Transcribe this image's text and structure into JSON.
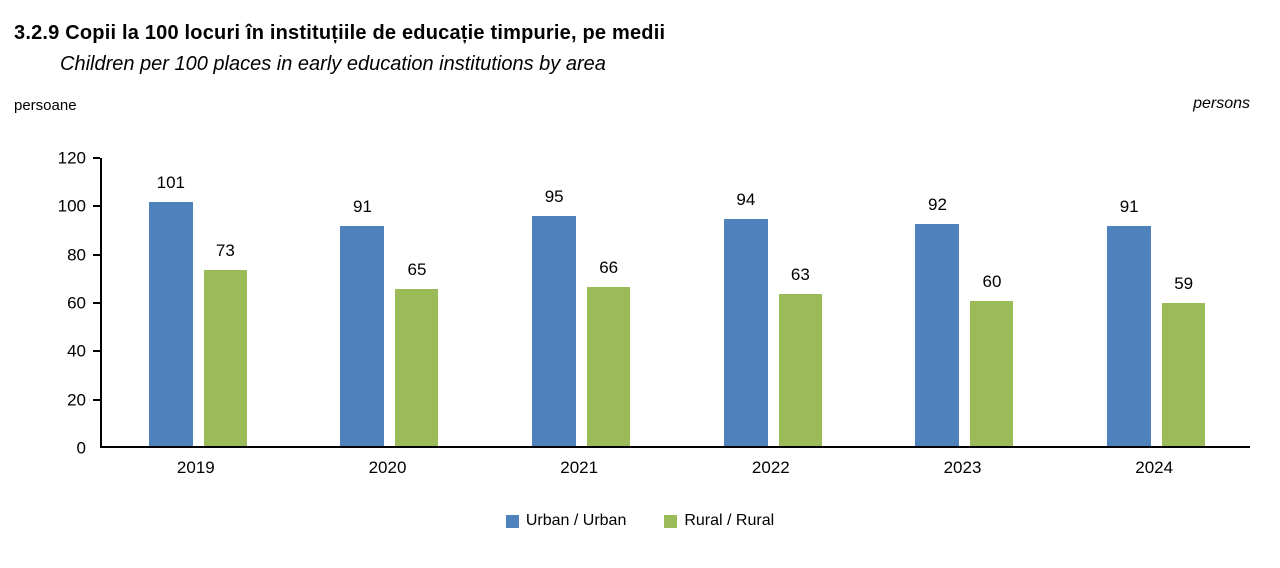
{
  "header": {
    "title": "3.2.9 Copii la 100 locuri în instituțiile de educație timpurie, pe medii",
    "subtitle": "Children  per 100 places in early education institutions by area",
    "unit_left": "persoane",
    "unit_right": "persons"
  },
  "colors": {
    "urban": "#4f81bd",
    "rural": "#9bbb59",
    "axis": "#000000",
    "text": "#000000"
  },
  "chart_data": {
    "type": "bar",
    "title": "Copii la 100 locuri în instituțiile de educație timpurie, pe medii / Children per 100 places in early education institutions by area",
    "categories": [
      "2019",
      "2020",
      "2021",
      "2022",
      "2023",
      "2024"
    ],
    "series": [
      {
        "name": "Urban / Urban",
        "color": "#4f81bd",
        "values": [
          101,
          91,
          95,
          94,
          92,
          91
        ]
      },
      {
        "name": "Rural / Rural",
        "color": "#9bbb59",
        "values": [
          73,
          65,
          66,
          63,
          60,
          59
        ]
      }
    ],
    "xlabel": "",
    "ylabel": "persoane / persons",
    "ylim": [
      0,
      120
    ],
    "yticks": [
      0,
      20,
      40,
      60,
      80,
      100,
      120
    ],
    "grid": false,
    "data_labels": true,
    "legend_position": "bottom"
  }
}
